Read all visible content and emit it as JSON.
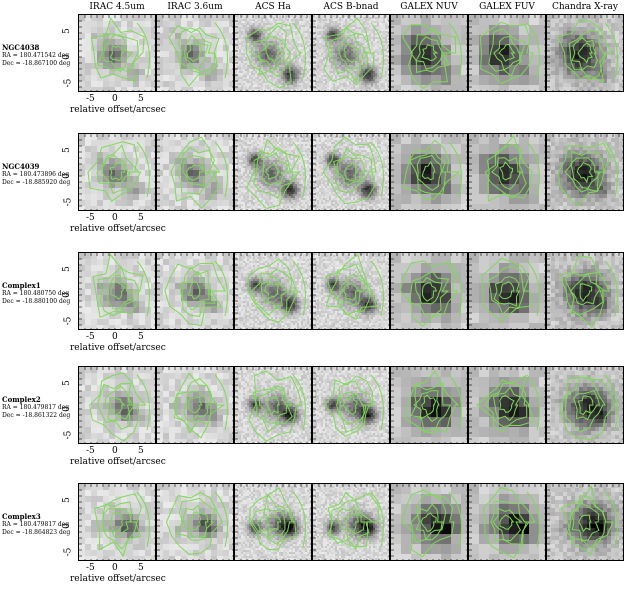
{
  "columns": [
    "IRAC 4.5um",
    "IRAC 3.6um",
    "ACS Ha",
    "ACS B-bnad",
    "GALEX NUV",
    "GALEX FUV",
    "Chandra X-ray"
  ],
  "rows": [
    {
      "name": "NGC4038",
      "ra": "RA = 180.471542 deg",
      "dec": "Dec = -18.867100 deg"
    },
    {
      "name": "NGC4039",
      "ra": "RA = 180.473896 deg",
      "dec": "Dec = -18.885920 deg"
    },
    {
      "name": "Complex1",
      "ra": "RA = 180.480750 deg",
      "dec": "Dec = -18.880100 deg"
    },
    {
      "name": "Complex2",
      "ra": "RA = 180.479817 deg",
      "dec": "Dec = -18.861322 deg"
    },
    {
      "name": "Complex3",
      "ra": "RA = 180.479817 deg",
      "dec": "Dec = -18.864823 deg"
    }
  ],
  "axis": {
    "xticks": [
      "-5",
      "0",
      "5"
    ],
    "yticks": [
      "5",
      "0",
      "-5"
    ],
    "xlabel": "relative offset/arcsec"
  },
  "colors": {
    "contour": "#7ed957",
    "frame": "#000000"
  }
}
